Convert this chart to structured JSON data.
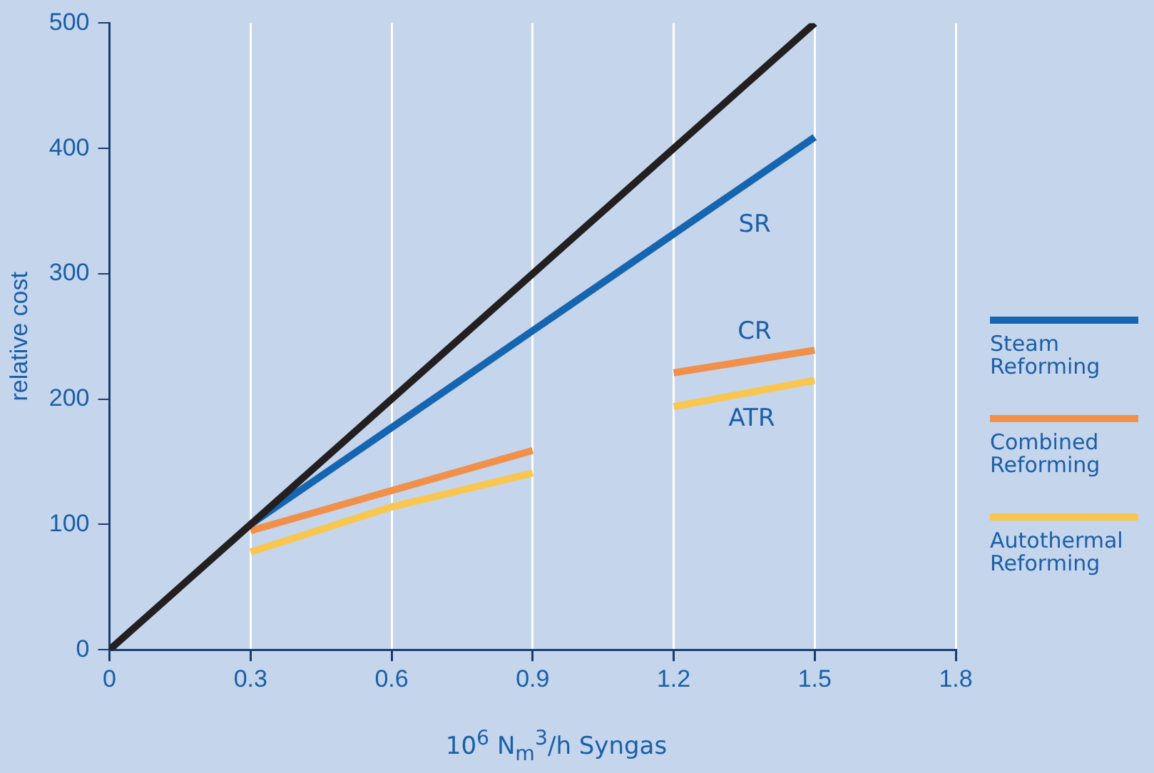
{
  "chart_data": {
    "type": "line",
    "xlabel": "10$^{6}$ N$_{m}$$^{3}$/h Syngas",
    "ylabel": "relative cost",
    "xlim": [
      0,
      1.8
    ],
    "xticks": [
      0,
      0.3,
      0.6,
      0.9,
      1.2,
      1.5,
      1.8
    ],
    "ylim": [
      0,
      500
    ],
    "yticks": [
      0,
      100,
      200,
      300,
      400,
      500
    ],
    "grid": "x",
    "legend": "right",
    "marker": "none",
    "line_style": "solid",
    "series": [
      {
        "color": "#231f20",
        "x": [
          0,
          1.5
        ],
        "values": [
          0,
          500
        ]
      },
      {
        "name": "Steam Reforming",
        "color": "#1565b0",
        "x": [
          0.3,
          1.5
        ],
        "values": [
          100,
          409
        ]
      },
      {
        "name": "Combined Reforming",
        "color": "#f0904a",
        "x": [
          0.3,
          0.6,
          0.9,
          null,
          1.2,
          1.5
        ],
        "values": [
          95,
          127,
          159,
          null,
          221,
          239
        ]
      },
      {
        "name": "Autothermal Reforming",
        "color": "#f9c74f",
        "x": [
          0.3,
          0.6,
          0.9,
          null,
          1.2,
          1.5
        ],
        "values": [
          78,
          114,
          141,
          null,
          194,
          215
        ]
      }
    ],
    "annotations": [
      "SR",
      "CR",
      "ATR"
    ]
  }
}
